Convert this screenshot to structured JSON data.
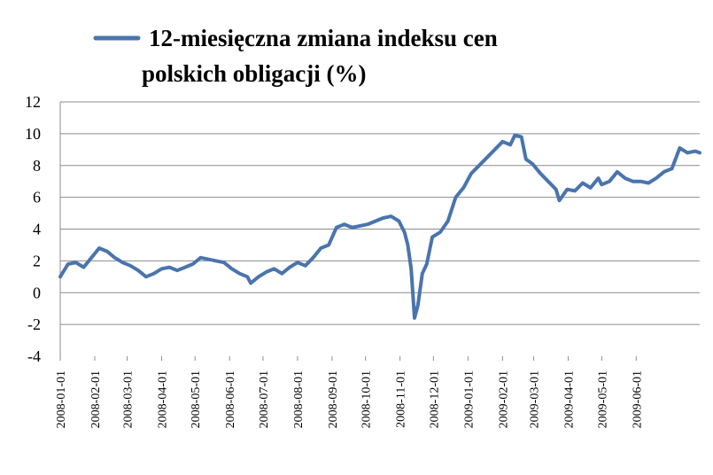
{
  "chart_data": {
    "type": "line",
    "title": "",
    "xlabel": "",
    "ylabel": "",
    "ylim": [
      -4,
      12
    ],
    "yticks": [
      "-4",
      "-2",
      "0",
      "2",
      "4",
      "6",
      "8",
      "10",
      "12"
    ],
    "grid": true,
    "legend_position": "top",
    "x_dates": [
      "2008-01-01",
      "2008-02-01",
      "2008-03-01",
      "2008-04-01",
      "2008-05-01",
      "2008-06-01",
      "2008-07-01",
      "2008-08-01",
      "2008-09-01",
      "2008-10-01",
      "2008-11-01",
      "2008-12-01",
      "2009-01-01",
      "2009-02-01",
      "2009-03-01",
      "2009-04-01",
      "2009-05-01",
      "2009-06-01"
    ],
    "series": [
      {
        "name": "12-miesięczna zmiana indeksu cen polskich obligacji (%)",
        "color": "#4a74ad",
        "points": [
          [
            "2008-01-01",
            1.0
          ],
          [
            "2008-01-08",
            1.8
          ],
          [
            "2008-01-15",
            1.9
          ],
          [
            "2008-01-22",
            1.6
          ],
          [
            "2008-01-29",
            2.2
          ],
          [
            "2008-02-05",
            2.8
          ],
          [
            "2008-02-12",
            2.6
          ],
          [
            "2008-02-19",
            2.2
          ],
          [
            "2008-02-26",
            1.9
          ],
          [
            "2008-03-04",
            1.7
          ],
          [
            "2008-03-11",
            1.4
          ],
          [
            "2008-03-18",
            1.0
          ],
          [
            "2008-03-25",
            1.2
          ],
          [
            "2008-04-01",
            1.5
          ],
          [
            "2008-04-08",
            1.6
          ],
          [
            "2008-04-15",
            1.4
          ],
          [
            "2008-04-22",
            1.6
          ],
          [
            "2008-04-29",
            1.8
          ],
          [
            "2008-05-06",
            2.2
          ],
          [
            "2008-05-13",
            2.1
          ],
          [
            "2008-05-20",
            2.0
          ],
          [
            "2008-05-27",
            1.9
          ],
          [
            "2008-06-03",
            1.5
          ],
          [
            "2008-06-10",
            1.2
          ],
          [
            "2008-06-17",
            1.0
          ],
          [
            "2008-06-20",
            0.6
          ],
          [
            "2008-06-27",
            1.0
          ],
          [
            "2008-07-04",
            1.3
          ],
          [
            "2008-07-11",
            1.5
          ],
          [
            "2008-07-18",
            1.2
          ],
          [
            "2008-07-25",
            1.6
          ],
          [
            "2008-08-01",
            1.9
          ],
          [
            "2008-08-08",
            1.7
          ],
          [
            "2008-08-15",
            2.2
          ],
          [
            "2008-08-22",
            2.8
          ],
          [
            "2008-08-29",
            3.0
          ],
          [
            "2008-09-05",
            4.1
          ],
          [
            "2008-09-12",
            4.3
          ],
          [
            "2008-09-19",
            4.1
          ],
          [
            "2008-09-26",
            4.2
          ],
          [
            "2008-10-03",
            4.3
          ],
          [
            "2008-10-10",
            4.5
          ],
          [
            "2008-10-17",
            4.7
          ],
          [
            "2008-10-24",
            4.8
          ],
          [
            "2008-10-31",
            4.5
          ],
          [
            "2008-11-05",
            3.8
          ],
          [
            "2008-11-08",
            3.0
          ],
          [
            "2008-11-11",
            1.5
          ],
          [
            "2008-11-14",
            -1.6
          ],
          [
            "2008-11-17",
            -0.8
          ],
          [
            "2008-11-21",
            1.2
          ],
          [
            "2008-11-25",
            1.8
          ],
          [
            "2008-11-30",
            3.5
          ],
          [
            "2008-12-07",
            3.8
          ],
          [
            "2008-12-14",
            4.5
          ],
          [
            "2008-12-21",
            6.0
          ],
          [
            "2008-12-28",
            6.6
          ],
          [
            "2009-01-04",
            7.5
          ],
          [
            "2009-01-11",
            8.0
          ],
          [
            "2009-01-18",
            8.5
          ],
          [
            "2009-01-25",
            9.0
          ],
          [
            "2009-02-01",
            9.5
          ],
          [
            "2009-02-08",
            9.3
          ],
          [
            "2009-02-12",
            9.9
          ],
          [
            "2009-02-18",
            9.8
          ],
          [
            "2009-02-22",
            8.4
          ],
          [
            "2009-02-28",
            8.1
          ],
          [
            "2009-03-07",
            7.5
          ],
          [
            "2009-03-14",
            7.0
          ],
          [
            "2009-03-21",
            6.5
          ],
          [
            "2009-03-24",
            5.8
          ],
          [
            "2009-03-31",
            6.5
          ],
          [
            "2009-04-07",
            6.4
          ],
          [
            "2009-04-14",
            6.9
          ],
          [
            "2009-04-21",
            6.6
          ],
          [
            "2009-04-28",
            7.2
          ],
          [
            "2009-05-01",
            6.8
          ],
          [
            "2009-05-08",
            7.0
          ],
          [
            "2009-05-15",
            7.6
          ],
          [
            "2009-05-22",
            7.2
          ],
          [
            "2009-05-29",
            7.0
          ],
          [
            "2009-06-05",
            7.0
          ],
          [
            "2009-06-12",
            6.9
          ],
          [
            "2009-06-19",
            7.2
          ],
          [
            "2009-06-26",
            7.6
          ],
          [
            "2009-07-03",
            7.8
          ],
          [
            "2009-07-10",
            9.1
          ],
          [
            "2009-07-17",
            8.8
          ],
          [
            "2009-07-24",
            8.9
          ],
          [
            "2009-07-28",
            8.8
          ]
        ]
      }
    ]
  }
}
